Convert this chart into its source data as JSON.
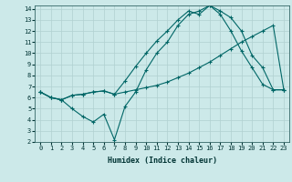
{
  "xlabel": "Humidex (Indice chaleur)",
  "background_color": "#cce9e9",
  "grid_color": "#b0d0d0",
  "line_color": "#006666",
  "xlim": [
    -0.5,
    23.5
  ],
  "ylim": [
    2,
    14.3
  ],
  "xticks": [
    0,
    1,
    2,
    3,
    4,
    5,
    6,
    7,
    8,
    9,
    10,
    11,
    12,
    13,
    14,
    15,
    16,
    17,
    18,
    19,
    20,
    21,
    22,
    23
  ],
  "yticks": [
    2,
    3,
    4,
    5,
    6,
    7,
    8,
    9,
    10,
    11,
    12,
    13,
    14
  ],
  "line1_x": [
    0,
    1,
    2,
    3,
    4,
    5,
    6,
    7,
    8,
    9,
    10,
    11,
    12,
    13,
    14,
    15,
    16,
    17,
    18,
    19,
    20,
    21,
    22,
    23
  ],
  "line1_y": [
    6.5,
    6.0,
    5.8,
    5.0,
    4.3,
    3.8,
    4.5,
    2.2,
    5.2,
    6.5,
    8.5,
    10.0,
    11.0,
    12.5,
    13.5,
    13.8,
    14.3,
    13.5,
    12.0,
    10.2,
    8.7,
    7.2,
    6.7,
    6.7
  ],
  "line2_x": [
    0,
    1,
    2,
    3,
    4,
    5,
    6,
    7,
    8,
    9,
    10,
    11,
    12,
    13,
    14,
    15,
    16,
    17,
    18,
    19,
    20,
    21,
    22,
    23
  ],
  "line2_y": [
    6.5,
    6.0,
    5.8,
    6.2,
    6.3,
    6.5,
    6.6,
    6.3,
    7.5,
    8.8,
    10.0,
    11.1,
    12.0,
    13.0,
    13.8,
    13.5,
    14.3,
    13.8,
    13.2,
    12.0,
    9.8,
    8.7,
    6.7,
    6.7
  ],
  "line3_x": [
    0,
    1,
    2,
    3,
    4,
    5,
    6,
    7,
    8,
    9,
    10,
    11,
    12,
    13,
    14,
    15,
    16,
    17,
    18,
    19,
    20,
    21,
    22,
    23
  ],
  "line3_y": [
    6.5,
    6.0,
    5.8,
    6.2,
    6.3,
    6.5,
    6.6,
    6.3,
    6.5,
    6.7,
    6.9,
    7.1,
    7.4,
    7.8,
    8.2,
    8.7,
    9.2,
    9.8,
    10.4,
    11.0,
    11.5,
    12.0,
    12.5,
    6.7
  ]
}
